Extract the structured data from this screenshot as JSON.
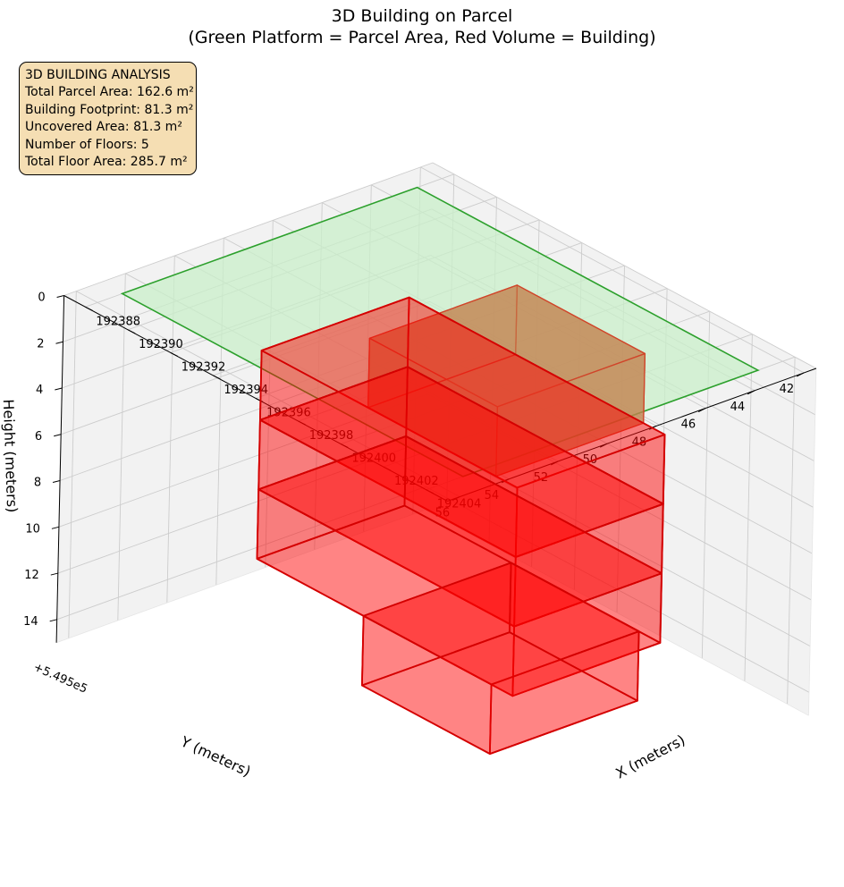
{
  "title": "3D Building on Parcel",
  "subtitle": "(Green Platform = Parcel Area, Red Volume = Building)",
  "info_box": {
    "lines": [
      "3D BUILDING ANALYSIS",
      "Total Parcel Area: 162.6 m²",
      "Building Footprint: 81.3 m²",
      "Uncovered Area: 81.3 m²",
      "Number of Floors: 5",
      "Total Floor Area: 285.7 m²"
    ],
    "background": "#f5deb3"
  },
  "chart_data": {
    "type": "3d-volume",
    "title": "3D Building on Parcel",
    "subtitle": "(Green Platform = Parcel Area, Red Volume = Building)",
    "xlabel": "X (meters)",
    "ylabel": "Y (meters)",
    "zlabel": "Height (meters)",
    "y_offset_text": "+5.495e5",
    "x_ticks": [
      "192388",
      "192390",
      "192392",
      "192394",
      "192396",
      "192398",
      "192400",
      "192402",
      "192404"
    ],
    "y_ticks": [
      "42",
      "44",
      "46",
      "48",
      "50",
      "52",
      "54",
      "56"
    ],
    "z_ticks": [
      "0",
      "2",
      "4",
      "6",
      "8",
      "10",
      "12",
      "14"
    ],
    "xlim": [
      192387,
      192405
    ],
    "ylim": [
      549541.5,
      549556.5
    ],
    "zlim": [
      0,
      15
    ],
    "grid": true,
    "colors": {
      "parcel_fill": "#c9efc9",
      "parcel_edge": "#2ca02c",
      "building_fill": "#ff0000",
      "building_edge": "#d40000",
      "ground_fill": "#c2824f",
      "ground_edge": "#d0452a",
      "pane": "#f2f2f2",
      "grid": "#cccccc"
    },
    "parcel": {
      "polygon": [
        [
          192388,
          549543
        ],
        [
          192404,
          549543
        ],
        [
          192404,
          549555
        ],
        [
          192388,
          549555
        ]
      ],
      "z": 0
    },
    "building": [
      {
        "floor": "ground",
        "x": [
          192395,
          192401
        ],
        "y": [
          549545,
          549551
        ],
        "z": [
          0,
          3
        ]
      },
      {
        "floor": "2",
        "x": [
          192390,
          192402
        ],
        "y": [
          549545,
          549551
        ],
        "z": [
          3,
          6
        ]
      },
      {
        "floor": "3",
        "x": [
          192390,
          192402
        ],
        "y": [
          549545,
          549551
        ],
        "z": [
          6,
          9
        ]
      },
      {
        "floor": "4",
        "x": [
          192390,
          192402
        ],
        "y": [
          549545,
          549551
        ],
        "z": [
          9,
          12
        ]
      },
      {
        "floor": "5",
        "x": [
          192395,
          192401
        ],
        "y": [
          549545,
          549551
        ],
        "z": [
          12,
          15
        ]
      }
    ]
  }
}
